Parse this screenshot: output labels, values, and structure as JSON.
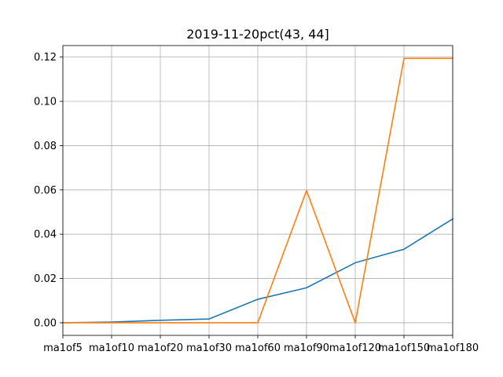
{
  "chart_data": {
    "type": "line",
    "title": "2019-11-20pct(43, 44]",
    "xlabel": "",
    "ylabel": "",
    "categories": [
      "ma1of5",
      "ma1of10",
      "ma1of20",
      "ma1of30",
      "ma1of60",
      "ma1of90",
      "ma1of120",
      "ma1of150",
      "ma1of180"
    ],
    "ylim": [
      -0.0057,
      0.1252
    ],
    "yticks": [
      0.0,
      0.02,
      0.04,
      0.06,
      0.08,
      0.1,
      0.12
    ],
    "ytick_labels": [
      "0.00",
      "0.02",
      "0.04",
      "0.06",
      "0.08",
      "0.10",
      "0.12"
    ],
    "grid": true,
    "series": [
      {
        "color": "#1f77b4",
        "values": [
          0.0,
          0.0003,
          0.0011,
          0.0017,
          0.0106,
          0.0158,
          0.0271,
          0.0332,
          0.0469
        ]
      },
      {
        "color": "#ff7f0e",
        "values": [
          0.0,
          0.0,
          0.0,
          0.0,
          0.0,
          0.0597,
          0.0,
          0.1194,
          0.1194
        ]
      }
    ]
  }
}
